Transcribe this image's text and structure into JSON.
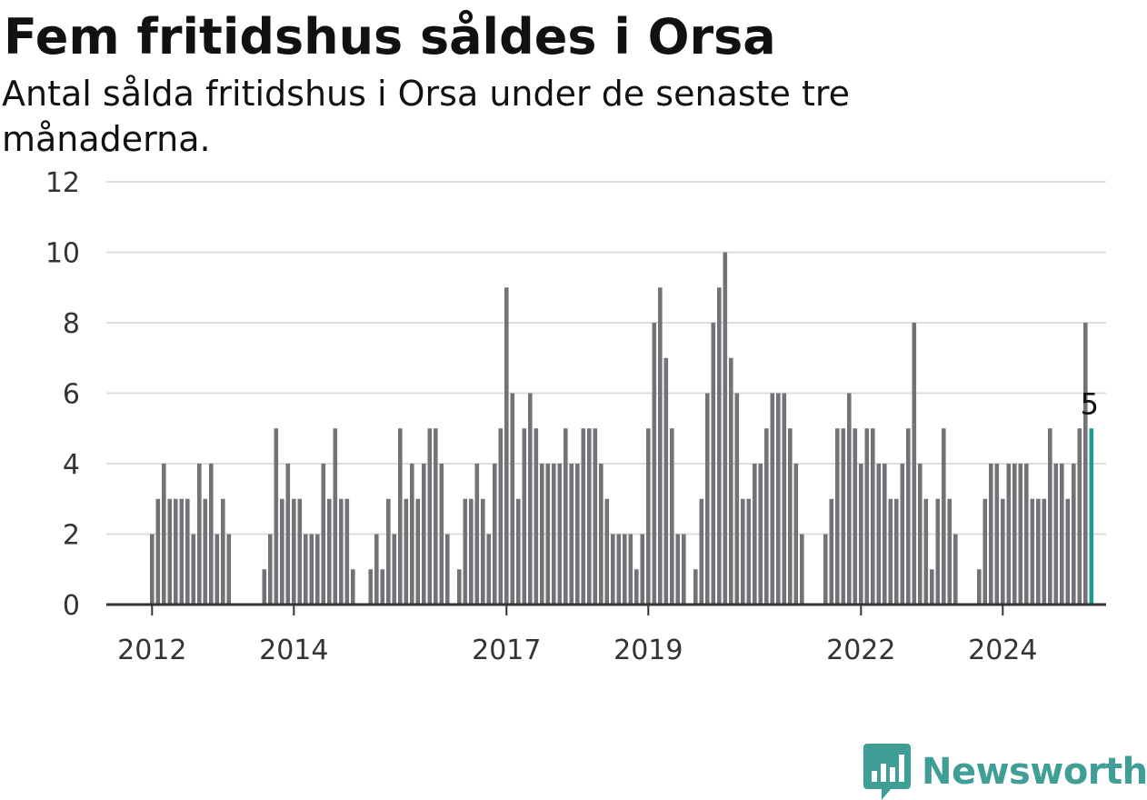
{
  "chart_data": {
    "type": "bar",
    "title": "Fem fritidshus såldes i Orsa",
    "subtitle": "Antal sålda fritidshus i Orsa under de senaste tre månaderna.",
    "xlabel": "",
    "ylabel": "",
    "ylim": [
      0,
      12
    ],
    "yticks": [
      0,
      2,
      4,
      6,
      8,
      10,
      12
    ],
    "xticks": [
      "2012",
      "2014",
      "2017",
      "2019",
      "2022",
      "2024"
    ],
    "grid": true,
    "colors": {
      "bar": "#737277",
      "highlight": "#1a9e93",
      "grid": "#dddddd",
      "axis": "#333333"
    },
    "values": [
      2,
      3,
      4,
      3,
      3,
      3,
      3,
      2,
      4,
      3,
      4,
      2,
      3,
      2,
      0,
      0,
      0,
      0,
      0,
      1,
      2,
      5,
      3,
      4,
      3,
      3,
      2,
      2,
      2,
      4,
      3,
      5,
      3,
      3,
      1,
      0,
      0,
      1,
      2,
      1,
      3,
      2,
      5,
      3,
      4,
      3,
      4,
      5,
      5,
      4,
      2,
      0,
      1,
      3,
      3,
      4,
      3,
      2,
      4,
      5,
      9,
      6,
      3,
      5,
      6,
      5,
      4,
      4,
      4,
      4,
      5,
      4,
      4,
      5,
      5,
      5,
      4,
      3,
      2,
      2,
      2,
      2,
      1,
      2,
      5,
      8,
      9,
      7,
      5,
      2,
      2,
      0,
      1,
      3,
      6,
      8,
      9,
      10,
      7,
      6,
      3,
      3,
      4,
      4,
      5,
      6,
      6,
      6,
      5,
      4,
      2,
      0,
      0,
      0,
      2,
      3,
      5,
      5,
      6,
      5,
      4,
      5,
      5,
      4,
      4,
      3,
      3,
      4,
      5,
      8,
      4,
      3,
      1,
      3,
      5,
      3,
      2,
      0,
      0,
      0,
      1,
      3,
      4,
      4,
      3,
      4,
      4,
      4,
      4,
      3,
      3,
      3,
      5,
      4,
      4,
      3,
      4,
      5,
      8,
      5
    ],
    "highlight_label": "5"
  },
  "brand": {
    "name": "Newsworthy",
    "icon": "newsworthy-logo-icon"
  }
}
